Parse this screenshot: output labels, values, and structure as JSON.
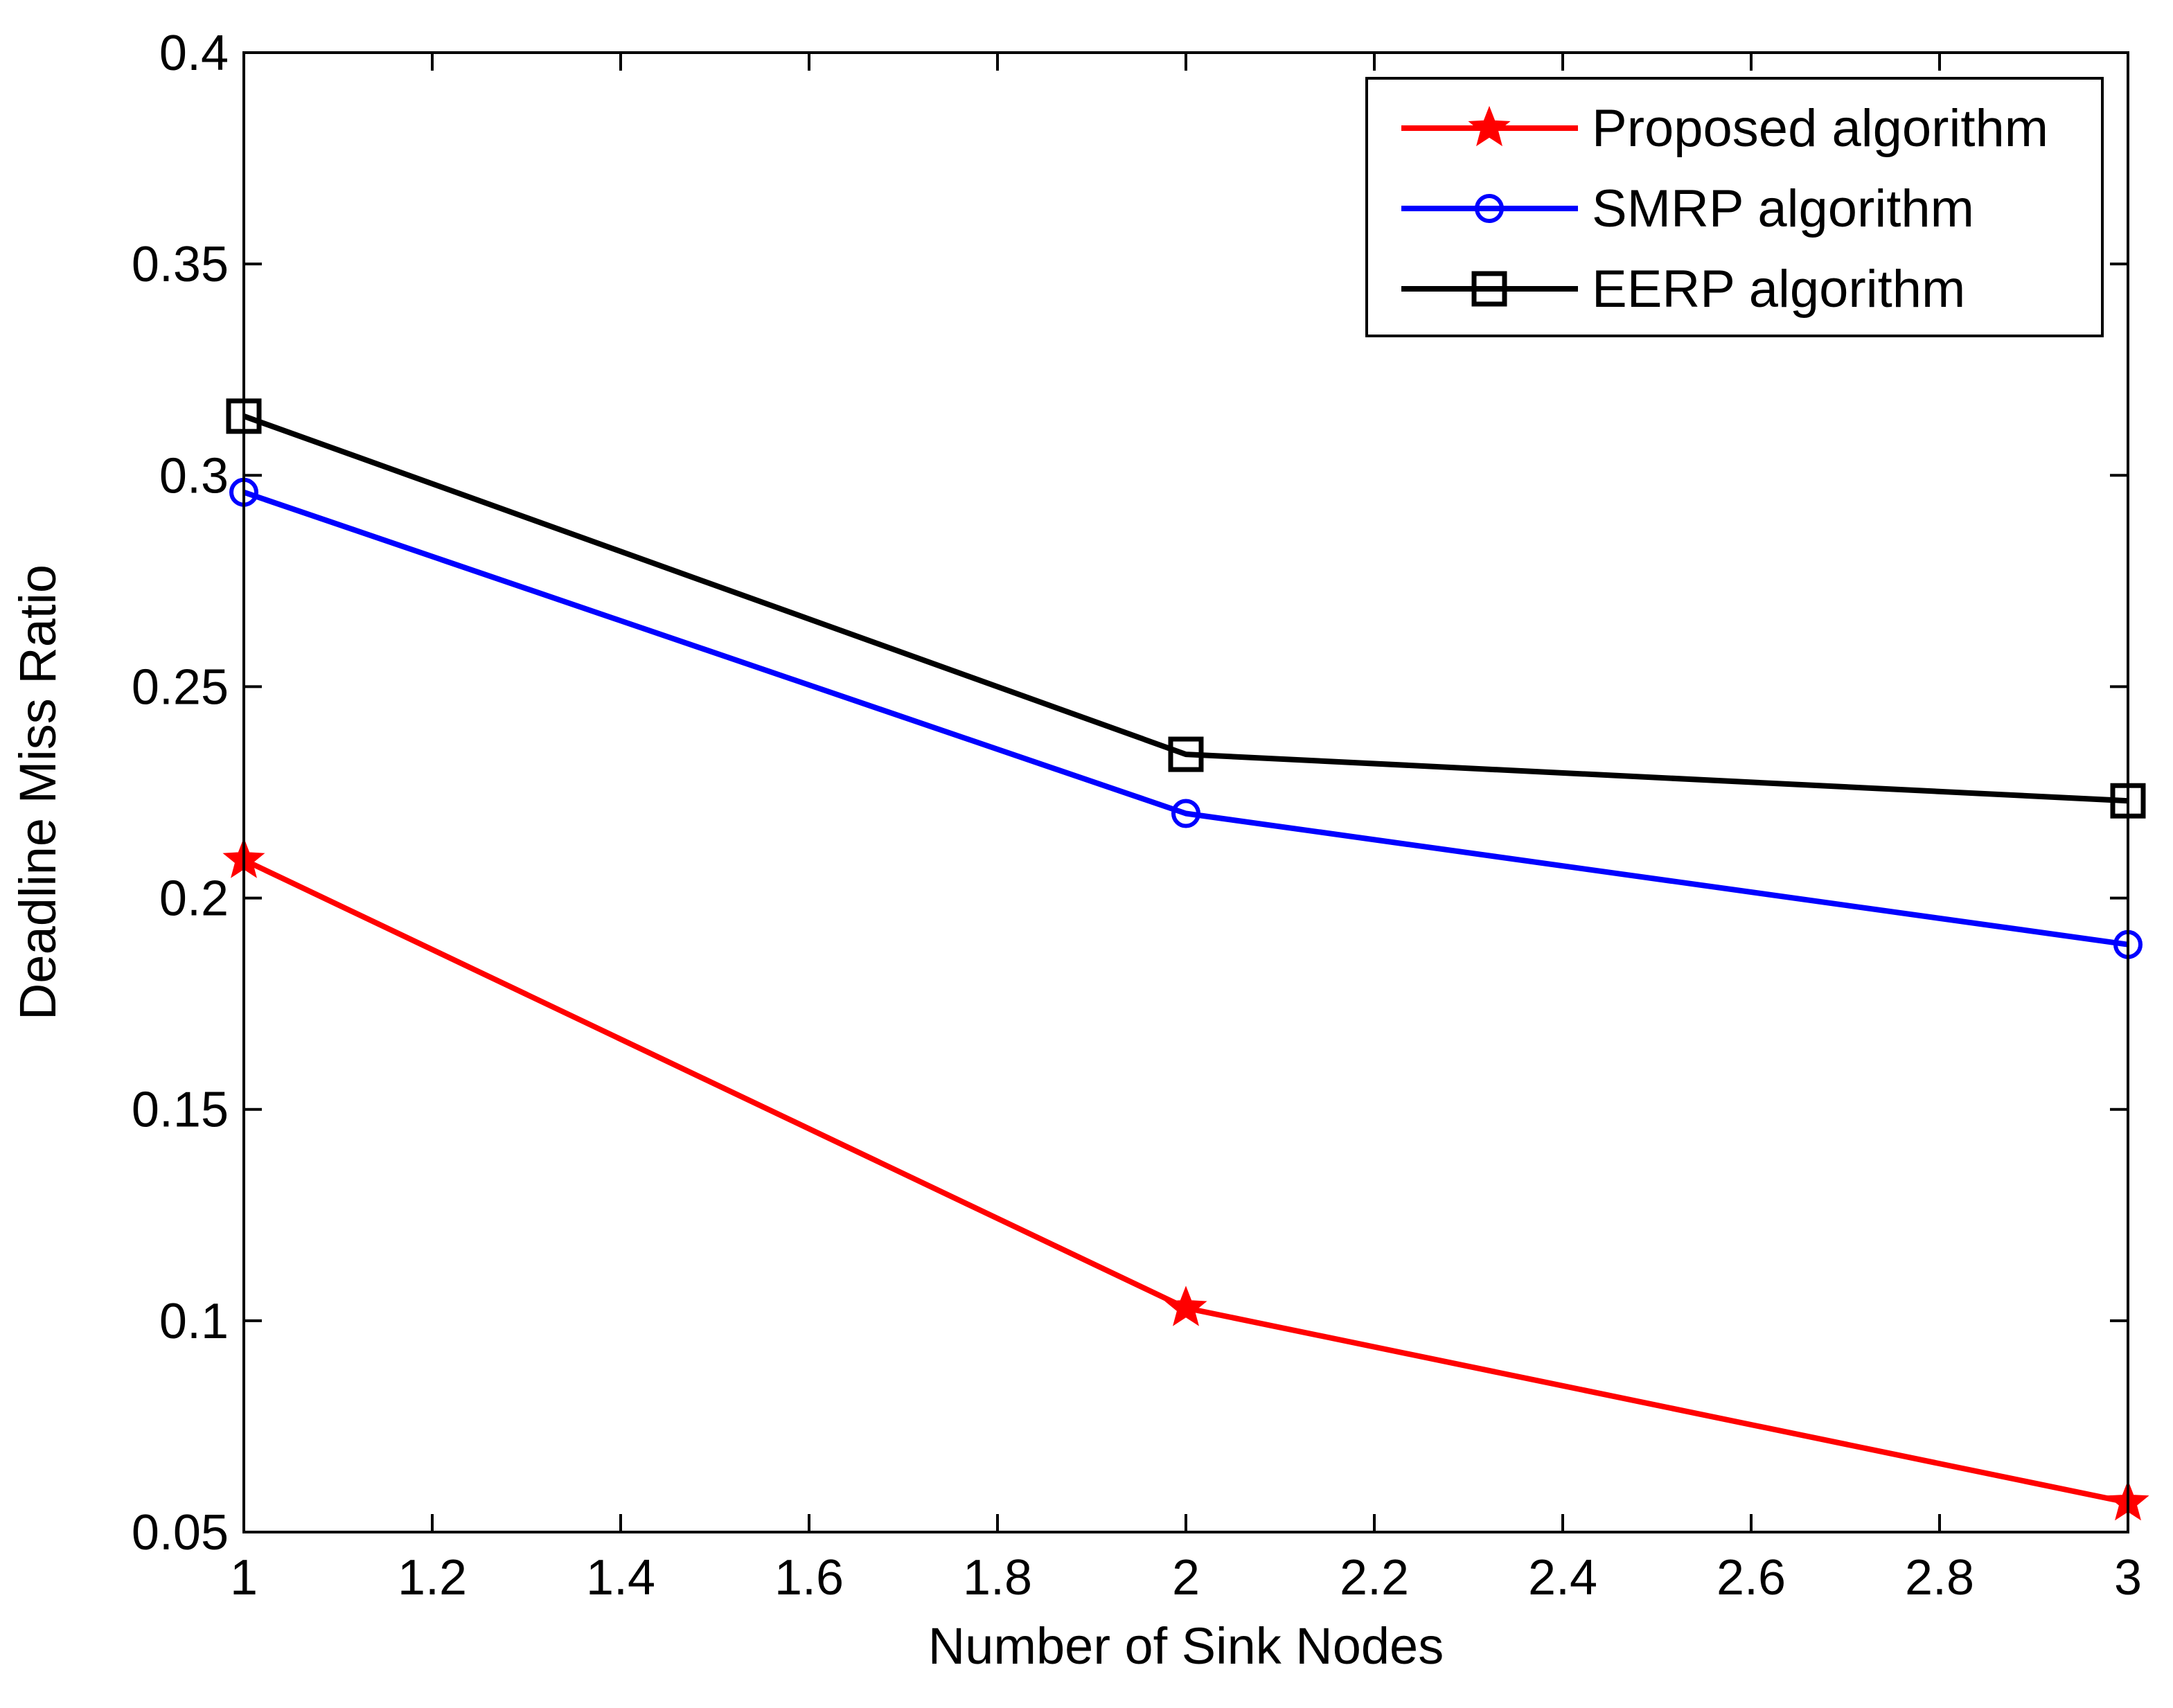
{
  "chart_data": {
    "type": "line",
    "title": "",
    "xlabel": "Number of Sink Nodes",
    "ylabel": "Deadline Miss Ratio",
    "xlim": [
      1,
      3
    ],
    "ylim": [
      0.05,
      0.4
    ],
    "xticks": [
      1,
      1.2,
      1.4,
      1.6,
      1.8,
      2,
      2.2,
      2.4,
      2.6,
      2.8,
      3
    ],
    "xtick_labels": [
      "1",
      "1.2",
      "1.4",
      "1.6",
      "1.8",
      "2",
      "2.2",
      "2.4",
      "2.6",
      "2.8",
      "3"
    ],
    "yticks": [
      0.05,
      0.1,
      0.15,
      0.2,
      0.25,
      0.3,
      0.35,
      0.4
    ],
    "ytick_labels": [
      "0.05",
      "0.1",
      "0.15",
      "0.2",
      "0.25",
      "0.3",
      "0.35",
      "0.4"
    ],
    "grid": false,
    "legend_position": "top-right",
    "x": [
      1,
      2,
      3
    ],
    "series": [
      {
        "name": "Proposed algorithm",
        "values": [
          0.209,
          0.103,
          0.057
        ],
        "color": "#ff0000",
        "marker": "star"
      },
      {
        "name": "SMRP algorithm",
        "values": [
          0.296,
          0.22,
          0.189
        ],
        "color": "#0000ff",
        "marker": "circle"
      },
      {
        "name": "EERP algorithm",
        "values": [
          0.314,
          0.234,
          0.223
        ],
        "color": "#000000",
        "marker": "square"
      }
    ]
  }
}
